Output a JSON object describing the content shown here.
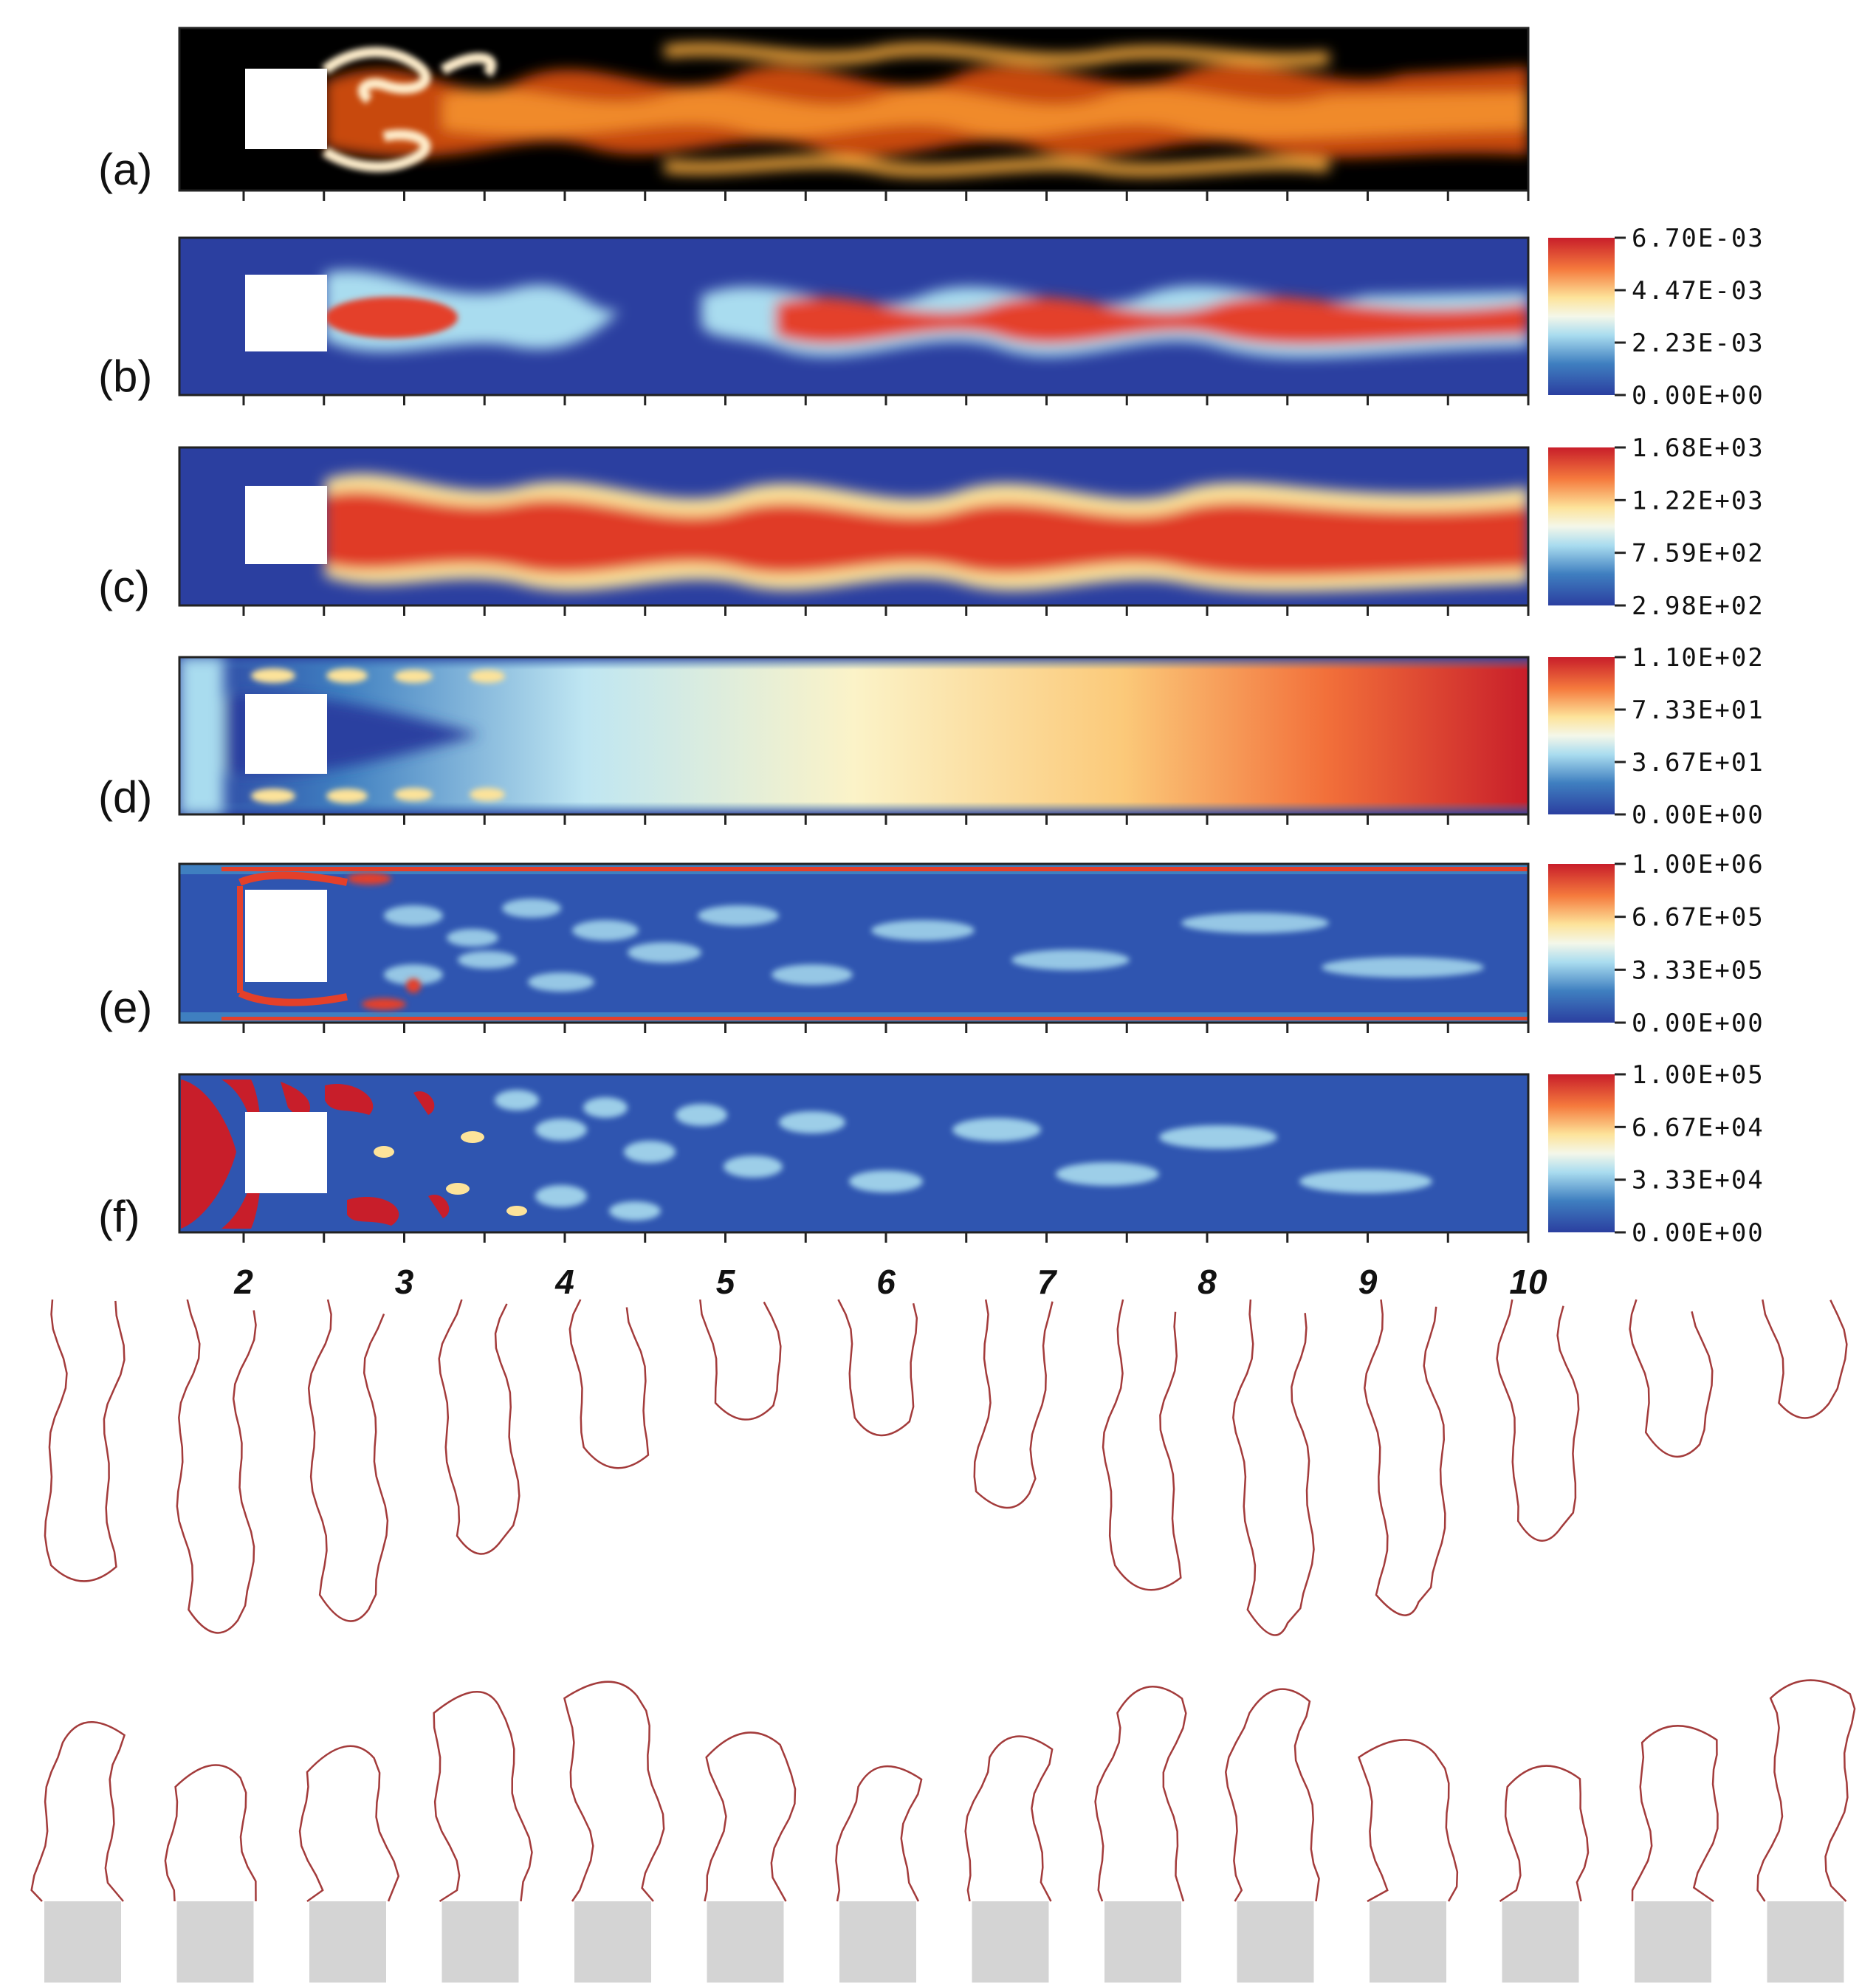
{
  "panels": [
    {
      "label": "(a)",
      "colormap": "hot",
      "colorbar": null
    },
    {
      "label": "(b)",
      "colormap": "rdbu",
      "colorbar": [
        "6.70E-03",
        "4.47E-03",
        "2.23E-03",
        "0.00E+00"
      ]
    },
    {
      "label": "(c)",
      "colormap": "rdbu",
      "colorbar": [
        "1.68E+03",
        "1.22E+03",
        "7.59E+02",
        "2.98E+02"
      ]
    },
    {
      "label": "(d)",
      "colormap": "rdbu",
      "colorbar": [
        "1.10E+02",
        "7.33E+01",
        "3.67E+01",
        "0.00E+00"
      ]
    },
    {
      "label": "(e)",
      "colormap": "rdbu",
      "colorbar": [
        "1.00E+06",
        "6.67E+05",
        "3.33E+05",
        "0.00E+00"
      ]
    },
    {
      "label": "(f)",
      "colormap": "rdbu",
      "colorbar": [
        "1.00E+05",
        "6.67E+04",
        "3.33E+04",
        "0.00E+00"
      ]
    }
  ],
  "x_axis": {
    "ticks": [
      "2",
      "3",
      "4",
      "5",
      "6",
      "7",
      "8",
      "9",
      "10"
    ],
    "range": [
      1.6,
      10
    ]
  },
  "flame_sequence": {
    "frames": 14,
    "contour_color": "#a33b3b",
    "block_color": "#d4d4d4"
  }
}
